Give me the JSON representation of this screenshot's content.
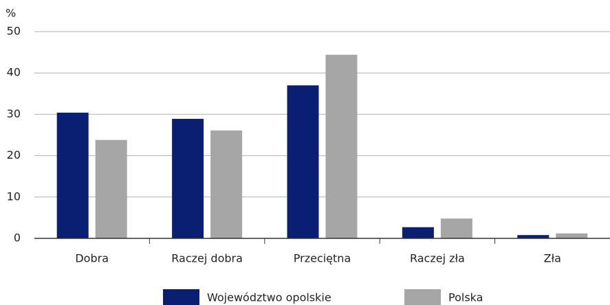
{
  "chart_data": {
    "type": "bar",
    "y_label": "%",
    "categories": [
      "Dobra",
      "Raczej dobra",
      "Przeciętna",
      "Raczej zła",
      "Zła"
    ],
    "series": [
      {
        "name": "Województwo opolskie",
        "color": "#0a1f72",
        "values": [
          30.4,
          28.9,
          37.0,
          2.7,
          0.8
        ]
      },
      {
        "name": "Polska",
        "color": "#a6a6a6",
        "values": [
          23.8,
          26.1,
          44.4,
          4.8,
          1.2
        ]
      }
    ],
    "ylim": [
      0,
      50
    ],
    "yticks": [
      0,
      10,
      20,
      30,
      40,
      50
    ],
    "grid": true,
    "legend": "bottom"
  }
}
